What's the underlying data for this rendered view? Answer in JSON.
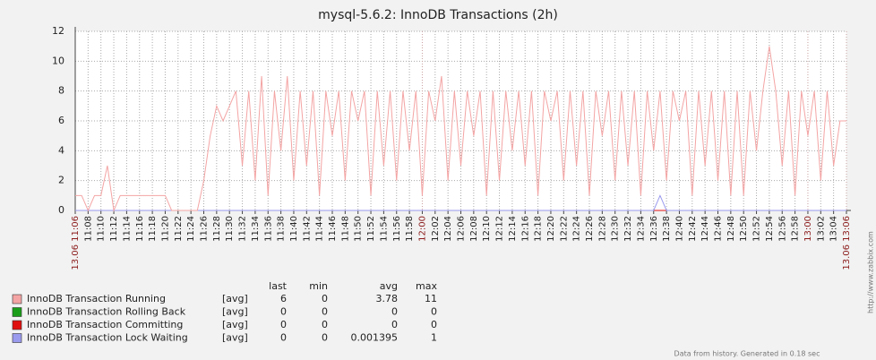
{
  "chart_data": {
    "type": "line",
    "title": "mysql-5.6.2: InnoDB Transactions  (2h)",
    "x": [
      "11:06",
      "11:07",
      "11:08",
      "11:09",
      "11:10",
      "11:11",
      "11:12",
      "11:13",
      "11:14",
      "11:15",
      "11:16",
      "11:17",
      "11:18",
      "11:19",
      "11:20",
      "11:21",
      "11:22",
      "11:23",
      "11:24",
      "11:25",
      "11:26",
      "11:27",
      "11:28",
      "11:29",
      "11:30",
      "11:31",
      "11:32",
      "11:33",
      "11:34",
      "11:35",
      "11:36",
      "11:37",
      "11:38",
      "11:39",
      "11:40",
      "11:41",
      "11:42",
      "11:43",
      "11:44",
      "11:45",
      "11:46",
      "11:47",
      "11:48",
      "11:49",
      "11:50",
      "11:51",
      "11:52",
      "11:53",
      "11:54",
      "11:55",
      "11:56",
      "11:57",
      "11:58",
      "11:59",
      "12:00",
      "12:01",
      "12:02",
      "12:03",
      "12:04",
      "12:05",
      "12:06",
      "12:07",
      "12:08",
      "12:09",
      "12:10",
      "12:11",
      "12:12",
      "12:13",
      "12:14",
      "12:15",
      "12:16",
      "12:17",
      "12:18",
      "12:19",
      "12:20",
      "12:21",
      "12:22",
      "12:23",
      "12:24",
      "12:25",
      "12:26",
      "12:27",
      "12:28",
      "12:29",
      "12:30",
      "12:31",
      "12:32",
      "12:33",
      "12:34",
      "12:35",
      "12:36",
      "12:37",
      "12:38",
      "12:39",
      "12:40",
      "12:41",
      "12:42",
      "12:43",
      "12:44",
      "12:45",
      "12:46",
      "12:47",
      "12:48",
      "12:49",
      "12:50",
      "12:51",
      "12:52",
      "12:53",
      "12:54",
      "12:55",
      "12:56",
      "12:57",
      "12:58",
      "12:59",
      "13:00",
      "13:01",
      "13:02",
      "13:03",
      "13:04",
      "13:05",
      "13:06"
    ],
    "xticks": [
      {
        "value": "11:06",
        "label": "13.06 11:06"
      },
      "11:08",
      "11:10",
      "11:12",
      "11:14",
      "11:16",
      "11:18",
      "11:20",
      "11:22",
      "11:24",
      "11:26",
      "11:28",
      "11:30",
      "11:32",
      "11:34",
      "11:36",
      "11:38",
      "11:40",
      "11:42",
      "11:44",
      "11:46",
      "11:48",
      "11:50",
      "11:52",
      "11:54",
      "11:56",
      "11:58",
      "12:00",
      "12:02",
      "12:04",
      "12:06",
      "12:08",
      "12:10",
      "12:12",
      "12:14",
      "12:16",
      "12:18",
      "12:20",
      "12:22",
      "12:24",
      "12:26",
      "12:28",
      "12:30",
      "12:32",
      "12:34",
      "12:36",
      "12:38",
      "12:40",
      "12:42",
      "12:44",
      "12:46",
      "12:48",
      "12:50",
      "12:52",
      "12:54",
      "12:56",
      "12:58",
      "13:00",
      "13:02",
      "13:04",
      {
        "value": "13:06",
        "label": "13.06 13:06"
      }
    ],
    "ylim": [
      0,
      12
    ],
    "yticks": [
      0,
      2,
      4,
      6,
      8,
      10,
      12
    ],
    "grid": true,
    "legend_headers": [
      "last",
      "min",
      "avg",
      "max"
    ],
    "series": [
      {
        "name": "InnoDB Transaction Running",
        "color": "#f4a4a4",
        "func": "[avg]",
        "last": 6,
        "min": 0,
        "avg": 3.78,
        "max": 11,
        "values": [
          1,
          1,
          0,
          1,
          1,
          3,
          0,
          1,
          1,
          1,
          1,
          1,
          1,
          1,
          1,
          0,
          0,
          0,
          0,
          0,
          2,
          5,
          7,
          6,
          7,
          8,
          3,
          8,
          2,
          9,
          1,
          8,
          4,
          9,
          2,
          8,
          3,
          8,
          1,
          8,
          5,
          8,
          2,
          8,
          6,
          8,
          1,
          8,
          3,
          8,
          2,
          8,
          4,
          8,
          1,
          8,
          6,
          9,
          2,
          8,
          3,
          8,
          5,
          8,
          1,
          8,
          2,
          8,
          4,
          8,
          3,
          8,
          1,
          8,
          6,
          8,
          2,
          8,
          3,
          8,
          1,
          8,
          5,
          8,
          2,
          8,
          3,
          8,
          1,
          8,
          4,
          8,
          2,
          8,
          6,
          8,
          1,
          8,
          3,
          8,
          2,
          8,
          1,
          8,
          1,
          8,
          4,
          8,
          11,
          8,
          3,
          8,
          1,
          8,
          5,
          8,
          2,
          8,
          3,
          6,
          6
        ]
      },
      {
        "name": "InnoDB Transaction Rolling Back",
        "color": "#1a9e1a",
        "func": "[avg]",
        "last": 0,
        "min": 0,
        "avg": 0,
        "max": 0,
        "values": [
          0,
          0,
          0,
          0,
          0,
          0,
          0,
          0,
          0,
          0,
          0,
          0,
          0,
          0,
          0,
          0,
          0,
          0,
          0,
          0,
          0,
          0,
          0,
          0,
          0,
          0,
          0,
          0,
          0,
          0,
          0,
          0,
          0,
          0,
          0,
          0,
          0,
          0,
          0,
          0,
          0,
          0,
          0,
          0,
          0,
          0,
          0,
          0,
          0,
          0,
          0,
          0,
          0,
          0,
          0,
          0,
          0,
          0,
          0,
          0,
          0,
          0,
          0,
          0,
          0,
          0,
          0,
          0,
          0,
          0,
          0,
          0,
          0,
          0,
          0,
          0,
          0,
          0,
          0,
          0,
          0,
          0,
          0,
          0,
          0,
          0,
          0,
          0,
          0,
          0,
          0,
          0,
          0,
          0,
          0,
          0,
          0,
          0,
          0,
          0,
          0,
          0,
          0,
          0,
          0,
          0,
          0,
          0,
          0,
          0,
          0,
          0,
          0,
          0,
          0,
          0,
          0,
          0,
          0,
          0,
          0
        ]
      },
      {
        "name": "InnoDB Transaction Committing",
        "color": "#e01010",
        "func": "[avg]",
        "last": 0,
        "min": 0,
        "avg": 0,
        "max": 0,
        "values": [
          0,
          0,
          0,
          0,
          0,
          0,
          0,
          0,
          0,
          0,
          0,
          0,
          0,
          0,
          0,
          0,
          0,
          0,
          0,
          0,
          0,
          0,
          0,
          0,
          0,
          0,
          0,
          0,
          0,
          0,
          0,
          0,
          0,
          0,
          0,
          0,
          0,
          0,
          0,
          0,
          0,
          0,
          0,
          0,
          0,
          0,
          0,
          0,
          0,
          0,
          0,
          0,
          0,
          0,
          0,
          0,
          0,
          0,
          0,
          0,
          0,
          0,
          0,
          0,
          0,
          0,
          0,
          0,
          0,
          0,
          0,
          0,
          0,
          0,
          0,
          0,
          0,
          0,
          0,
          0,
          0,
          0,
          0,
          0,
          0,
          0,
          0,
          0,
          0,
          0,
          0,
          0,
          0,
          0,
          0,
          0,
          0,
          0,
          0,
          0,
          0,
          0,
          0,
          0,
          0,
          0,
          0,
          0,
          0,
          0,
          0,
          0,
          0,
          0,
          0,
          0,
          0,
          0,
          0,
          0,
          0
        ]
      },
      {
        "name": "InnoDB Transaction Lock Waiting",
        "color": "#9a9aee",
        "func": "[avg]",
        "last": 0,
        "min": 0,
        "avg": 0.001395,
        "max": 1,
        "values": [
          0,
          0,
          0,
          0,
          0,
          0,
          0,
          0,
          0,
          0,
          0,
          0,
          0,
          0,
          0,
          0,
          0,
          0,
          0,
          0,
          0,
          0,
          0,
          0,
          0,
          0,
          0,
          0,
          0,
          0,
          0,
          0,
          0,
          0,
          0,
          0,
          0,
          0,
          0,
          0,
          0,
          0,
          0,
          0,
          0,
          0,
          0,
          0,
          0,
          0,
          0,
          0,
          0,
          0,
          0,
          0,
          0,
          0,
          0,
          0,
          0,
          0,
          0,
          0,
          0,
          0,
          0,
          0,
          0,
          0,
          0,
          0,
          0,
          0,
          0,
          0,
          0,
          0,
          0,
          0,
          0,
          0,
          0,
          0,
          0,
          0,
          0,
          0,
          0,
          0,
          0,
          1,
          0,
          0,
          0,
          0,
          0,
          0,
          0,
          0,
          0,
          0,
          0,
          0,
          0,
          0,
          0,
          0,
          0,
          0,
          0,
          0,
          0,
          0,
          0,
          0,
          0,
          0,
          0,
          0,
          0
        ]
      }
    ],
    "footer": "Data from history. Generated in 0.18 sec",
    "watermark": "http://www.zabbix.com"
  }
}
